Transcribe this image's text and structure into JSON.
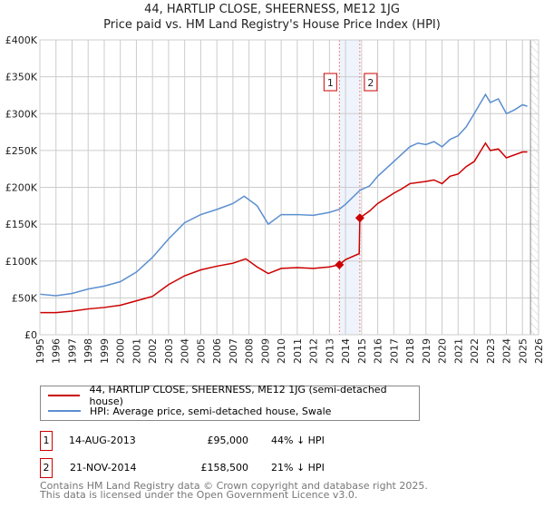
{
  "chart_data": {
    "type": "line",
    "title": "44, HARTLIP CLOSE, SHEERNESS, ME12 1JG",
    "subtitle": "Price paid vs. HM Land Registry's House Price Index (HPI)",
    "xlim": [
      1995,
      2026
    ],
    "ylim": [
      0,
      400000
    ],
    "y_ticks": [
      "£0",
      "£50K",
      "£100K",
      "£150K",
      "£200K",
      "£250K",
      "£300K",
      "£350K",
      "£400K"
    ],
    "x_ticks": [
      "1995",
      "1996",
      "1997",
      "1998",
      "1999",
      "2000",
      "2001",
      "2002",
      "2003",
      "2004",
      "2005",
      "2006",
      "2007",
      "2008",
      "2009",
      "2010",
      "2011",
      "2012",
      "2013",
      "2014",
      "2015",
      "2016",
      "2017",
      "2018",
      "2019",
      "2020",
      "2021",
      "2022",
      "2023",
      "2024",
      "2025",
      "2026"
    ],
    "grid": true,
    "series": [
      {
        "name": "44, HARTLIP CLOSE, SHEERNESS, ME12 1JG (semi-detached house)",
        "color": "#cc0000",
        "x": [
          1995,
          1996,
          1997,
          1998,
          1999,
          2000,
          2001,
          2002,
          2003,
          2004,
          2005,
          2006,
          2007,
          2007.8,
          2008.5,
          2009.2,
          2010,
          2011,
          2012,
          2013,
          2013.62,
          2014,
          2014.85,
          2014.89,
          2015.5,
          2016,
          2017,
          2017.5,
          2018,
          2019,
          2019.5,
          2020,
          2020.5,
          2021,
          2021.5,
          2022,
          2022.7,
          2023,
          2023.5,
          2024,
          2025,
          2025.3
        ],
        "y": [
          30000,
          30000,
          32000,
          35000,
          37000,
          40000,
          46000,
          52000,
          68000,
          80000,
          88000,
          93000,
          97000,
          103000,
          92000,
          83000,
          90000,
          91000,
          90000,
          92000,
          95000,
          102000,
          110000,
          158500,
          168000,
          178000,
          192000,
          198000,
          205000,
          208000,
          210000,
          205000,
          215000,
          218000,
          228000,
          235000,
          260000,
          250000,
          252000,
          240000,
          248000,
          248000
        ]
      },
      {
        "name": "HPI: Average price, semi-detached house, Swale",
        "color": "#5b8fd0",
        "x": [
          1995,
          1996,
          1997,
          1998,
          1999,
          2000,
          2001,
          2002,
          2003,
          2004,
          2005,
          2006,
          2007,
          2007.7,
          2008.5,
          2009.2,
          2010,
          2011,
          2012,
          2013,
          2013.6,
          2014,
          2014.9,
          2015.5,
          2016,
          2017,
          2017.5,
          2018,
          2018.5,
          2019,
          2019.5,
          2020,
          2020.5,
          2021,
          2021.5,
          2022,
          2022.7,
          2023,
          2023.5,
          2024,
          2024.5,
          2025,
          2025.3
        ],
        "y": [
          55000,
          53000,
          56000,
          62000,
          66000,
          72000,
          85000,
          105000,
          130000,
          152000,
          163000,
          170000,
          178000,
          188000,
          175000,
          150000,
          163000,
          163000,
          162000,
          166000,
          170000,
          177000,
          196000,
          202000,
          215000,
          235000,
          245000,
          255000,
          260000,
          258000,
          262000,
          255000,
          265000,
          270000,
          282000,
          300000,
          326000,
          315000,
          320000,
          300000,
          305000,
          312000,
          310000
        ]
      }
    ],
    "transactions": [
      {
        "label": "1",
        "date": "14-AUG-2013",
        "x": 2013.62,
        "price": "£95,000",
        "value": 95000,
        "hpi": "44% ↓ HPI"
      },
      {
        "label": "2",
        "date": "21-NOV-2014",
        "x": 2014.89,
        "price": "£158,500",
        "value": 158500,
        "hpi": "21% ↓ HPI"
      }
    ],
    "legend": {
      "placement": "below"
    }
  },
  "footer": [
    "Contains HM Land Registry data © Crown copyright and database right 2025.",
    "This data is licensed under the Open Government Licence v3.0."
  ]
}
